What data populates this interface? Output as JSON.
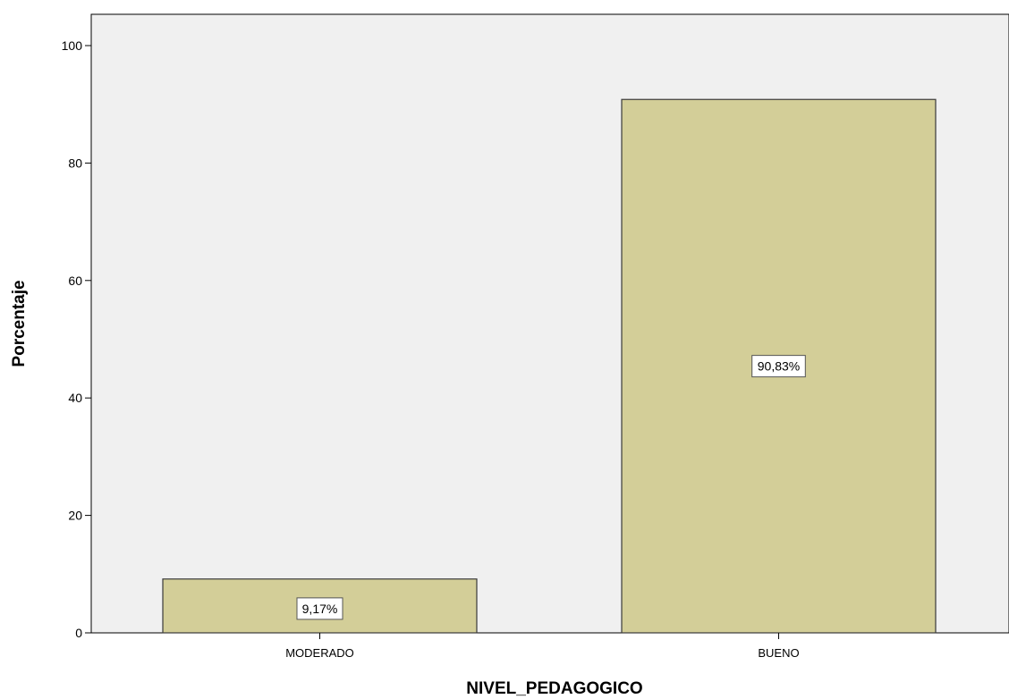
{
  "chart_data": {
    "type": "bar",
    "categories": [
      "MODERADO",
      "BUENO"
    ],
    "values": [
      9.17,
      90.83
    ],
    "data_labels": [
      "9,17%",
      "90,83%"
    ],
    "xlabel": "NIVEL_PEDAGOGICO",
    "ylabel": "Porcentaje",
    "ylim": [
      0,
      100
    ],
    "yticks": [
      0,
      20,
      40,
      60,
      80,
      100
    ],
    "grid": false,
    "legend": "none",
    "colors": {
      "plot_background": "#f0f0f0",
      "bar_fill": "#d3ce98",
      "bar_stroke": "#3a3a3a",
      "axis": "#000000",
      "label_box": "#ffffff"
    }
  }
}
